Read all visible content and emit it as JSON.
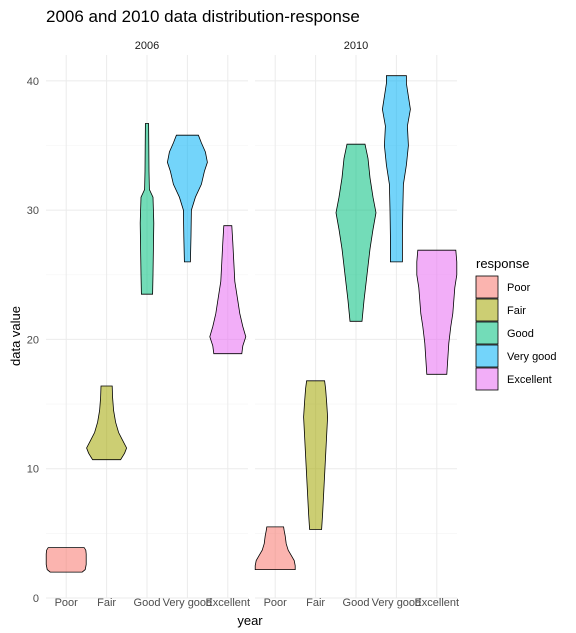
{
  "chart_data": {
    "type": "violin",
    "title": "2006 and 2010 data distribution-response",
    "xlabel": "year",
    "ylabel": "data value",
    "ylim": [
      0,
      42
    ],
    "yticks": [
      0,
      10,
      20,
      30,
      40
    ],
    "grid": true,
    "categories": [
      "Poor",
      "Fair",
      "Good",
      "Very good",
      "Excellent"
    ],
    "colors": {
      "Poor": "#F8766D",
      "Fair": "#A3A500",
      "Good": "#00BF7D",
      "Very good": "#00B0F6",
      "Excellent": "#E76BF3"
    },
    "legend": {
      "title": "response",
      "position": "right",
      "entries": [
        "Poor",
        "Fair",
        "Good",
        "Very good",
        "Excellent"
      ]
    },
    "panels": [
      {
        "label": "2006",
        "series": [
          {
            "name": "Poor",
            "min": 2.0,
            "max": 3.9,
            "profile": [
              [
                2.0,
                0.8
              ],
              [
                2.2,
                0.95
              ],
              [
                2.6,
                1.0
              ],
              [
                3.0,
                1.0
              ],
              [
                3.4,
                1.0
              ],
              [
                3.7,
                0.98
              ],
              [
                3.9,
                0.9
              ]
            ]
          },
          {
            "name": "Fair",
            "min": 10.7,
            "max": 16.4,
            "profile": [
              [
                10.7,
                0.7
              ],
              [
                11.2,
                0.9
              ],
              [
                11.6,
                1.0
              ],
              [
                12.2,
                0.8
              ],
              [
                12.8,
                0.6
              ],
              [
                13.6,
                0.45
              ],
              [
                14.5,
                0.35
              ],
              [
                15.5,
                0.3
              ],
              [
                16.4,
                0.28
              ]
            ]
          },
          {
            "name": "Good",
            "min": 23.5,
            "max": 36.7,
            "profile": [
              [
                23.5,
                0.28
              ],
              [
                25.0,
                0.3
              ],
              [
                27.0,
                0.32
              ],
              [
                29.0,
                0.34
              ],
              [
                31.0,
                0.3
              ],
              [
                31.6,
                0.12
              ],
              [
                33.0,
                0.1
              ],
              [
                35.0,
                0.09
              ],
              [
                36.7,
                0.08
              ]
            ]
          },
          {
            "name": "Very good",
            "min": 26.0,
            "max": 35.8,
            "profile": [
              [
                26.0,
                0.15
              ],
              [
                28.0,
                0.18
              ],
              [
                30.0,
                0.2
              ],
              [
                31.0,
                0.4
              ],
              [
                32.0,
                0.7
              ],
              [
                33.0,
                0.85
              ],
              [
                33.7,
                1.0
              ],
              [
                34.5,
                0.9
              ],
              [
                35.2,
                0.7
              ],
              [
                35.8,
                0.55
              ]
            ]
          },
          {
            "name": "Excellent",
            "min": 18.9,
            "max": 28.8,
            "profile": [
              [
                18.9,
                0.7
              ],
              [
                19.5,
                0.75
              ],
              [
                20.2,
                0.9
              ],
              [
                21.0,
                0.75
              ],
              [
                22.0,
                0.6
              ],
              [
                23.0,
                0.5
              ],
              [
                24.5,
                0.35
              ],
              [
                26.0,
                0.3
              ],
              [
                27.5,
                0.25
              ],
              [
                28.8,
                0.2
              ]
            ]
          }
        ]
      },
      {
        "label": "2010",
        "series": [
          {
            "name": "Poor",
            "min": 2.2,
            "max": 5.5,
            "profile": [
              [
                2.2,
                1.0
              ],
              [
                2.5,
                1.0
              ],
              [
                2.9,
                0.95
              ],
              [
                3.3,
                0.8
              ],
              [
                3.7,
                0.65
              ],
              [
                4.2,
                0.55
              ],
              [
                4.8,
                0.5
              ],
              [
                5.2,
                0.45
              ],
              [
                5.5,
                0.42
              ]
            ]
          },
          {
            "name": "Fair",
            "min": 5.3,
            "max": 16.8,
            "profile": [
              [
                5.3,
                0.3
              ],
              [
                6.5,
                0.35
              ],
              [
                8.0,
                0.4
              ],
              [
                9.5,
                0.45
              ],
              [
                11.0,
                0.5
              ],
              [
                12.5,
                0.55
              ],
              [
                14.0,
                0.6
              ],
              [
                15.2,
                0.55
              ],
              [
                16.2,
                0.5
              ],
              [
                16.8,
                0.45
              ]
            ]
          },
          {
            "name": "Good",
            "min": 21.4,
            "max": 35.1,
            "profile": [
              [
                21.4,
                0.3
              ],
              [
                23.0,
                0.4
              ],
              [
                25.0,
                0.55
              ],
              [
                27.0,
                0.7
              ],
              [
                28.5,
                0.85
              ],
              [
                29.8,
                1.0
              ],
              [
                31.0,
                0.85
              ],
              [
                32.5,
                0.7
              ],
              [
                34.0,
                0.6
              ],
              [
                35.1,
                0.45
              ]
            ]
          },
          {
            "name": "Very good",
            "min": 26.0,
            "max": 40.4,
            "profile": [
              [
                26.0,
                0.3
              ],
              [
                28.0,
                0.3
              ],
              [
                30.0,
                0.32
              ],
              [
                32.0,
                0.35
              ],
              [
                33.5,
                0.5
              ],
              [
                35.0,
                0.6
              ],
              [
                36.5,
                0.55
              ],
              [
                37.8,
                0.7
              ],
              [
                38.8,
                0.6
              ],
              [
                39.8,
                0.5
              ],
              [
                40.4,
                0.5
              ]
            ]
          },
          {
            "name": "Excellent",
            "min": 17.3,
            "max": 26.9,
            "profile": [
              [
                17.3,
                0.5
              ],
              [
                18.5,
                0.55
              ],
              [
                19.7,
                0.6
              ],
              [
                21.0,
                0.7
              ],
              [
                22.0,
                0.8
              ],
              [
                23.0,
                0.85
              ],
              [
                24.0,
                0.9
              ],
              [
                25.0,
                1.0
              ],
              [
                26.0,
                1.0
              ],
              [
                26.9,
                0.95
              ]
            ]
          }
        ]
      }
    ]
  }
}
